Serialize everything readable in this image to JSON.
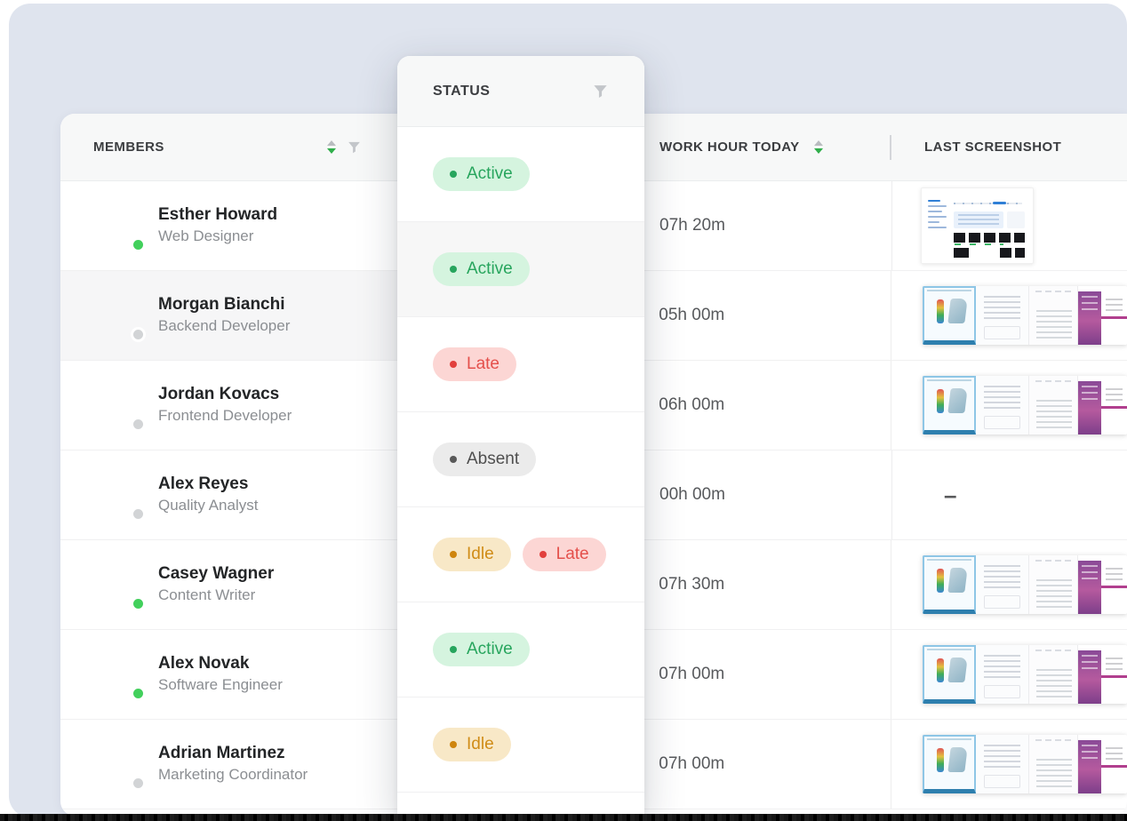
{
  "table": {
    "headers": {
      "members": "MEMBERS",
      "status": "STATUS",
      "work_hour": "WORK HOUR TODAY",
      "last_screenshot": "LAST SCREENSHOT"
    },
    "no_screenshot_symbol": "–",
    "rows": [
      {
        "name": "Esther Howard",
        "role": "Web Designer",
        "presence": "online",
        "work_hour": "07h 20m",
        "screenshot": "dashboard",
        "highlighted": false,
        "avatar_colors": [
          "#caa27a",
          "#1f8a99"
        ]
      },
      {
        "name": "Morgan Bianchi",
        "role": "Backend Developer",
        "presence": "offline",
        "work_hour": "05h 00m",
        "screenshot": "workspace",
        "highlighted": true,
        "avatar_colors": [
          "#f0a63a",
          "#5a3d2b"
        ]
      },
      {
        "name": "Jordan Kovacs",
        "role": "Frontend Developer",
        "presence": "offline",
        "work_hour": "06h 00m",
        "screenshot": "workspace",
        "highlighted": false,
        "avatar_colors": [
          "#a9a28f",
          "#2f4a38"
        ]
      },
      {
        "name": "Alex Reyes",
        "role": "Quality Analyst",
        "presence": "offline",
        "work_hour": "00h 00m",
        "screenshot": "none",
        "highlighted": false,
        "avatar_colors": [
          "#cfc8c2",
          "#6b7a6e"
        ]
      },
      {
        "name": "Casey Wagner",
        "role": "Content Writer",
        "presence": "online",
        "work_hour": "07h 30m",
        "screenshot": "workspace",
        "highlighted": false,
        "avatar_colors": [
          "#d9b13b",
          "#3f7a36"
        ]
      },
      {
        "name": "Alex Novak",
        "role": "Software Engineer",
        "presence": "online",
        "work_hour": "07h 00m",
        "screenshot": "workspace",
        "highlighted": false,
        "avatar_colors": [
          "#caa83c",
          "#2e2a26"
        ]
      },
      {
        "name": "Adrian Martinez",
        "role": "Marketing Coordinator",
        "presence": "offline",
        "work_hour": "07h 00m",
        "screenshot": "workspace",
        "highlighted": false,
        "avatar_colors": [
          "#c9a14a",
          "#a14a38"
        ]
      }
    ]
  },
  "status_card": {
    "header": "STATUS",
    "rows": [
      {
        "highlighted": false,
        "badges": [
          {
            "label": "Active",
            "type": "active"
          }
        ]
      },
      {
        "highlighted": true,
        "badges": [
          {
            "label": "Active",
            "type": "active"
          }
        ]
      },
      {
        "highlighted": false,
        "badges": [
          {
            "label": "Late",
            "type": "late"
          }
        ]
      },
      {
        "highlighted": false,
        "badges": [
          {
            "label": "Absent",
            "type": "absent"
          }
        ]
      },
      {
        "highlighted": false,
        "badges": [
          {
            "label": "Idle",
            "type": "idle"
          },
          {
            "label": "Late",
            "type": "late"
          }
        ]
      },
      {
        "highlighted": false,
        "badges": [
          {
            "label": "Active",
            "type": "active"
          }
        ]
      },
      {
        "highlighted": false,
        "badges": [
          {
            "label": "Idle",
            "type": "idle"
          }
        ]
      }
    ]
  },
  "colors": {
    "panel_bg": "#dfe4ee",
    "accent_sort_green": "#2fae4a",
    "online_dot": "#42d05c",
    "offline_dot": "#d2d4d6",
    "badge_active_bg": "#d5f4df",
    "badge_active_text": "#27a55d",
    "badge_late_bg": "#fcd6d4",
    "badge_late_text": "#e4504b",
    "badge_absent_bg": "#ebebeb",
    "badge_absent_text": "#4f4f4f",
    "badge_idle_bg": "#f8e8c7",
    "badge_idle_text": "#d08c17"
  }
}
